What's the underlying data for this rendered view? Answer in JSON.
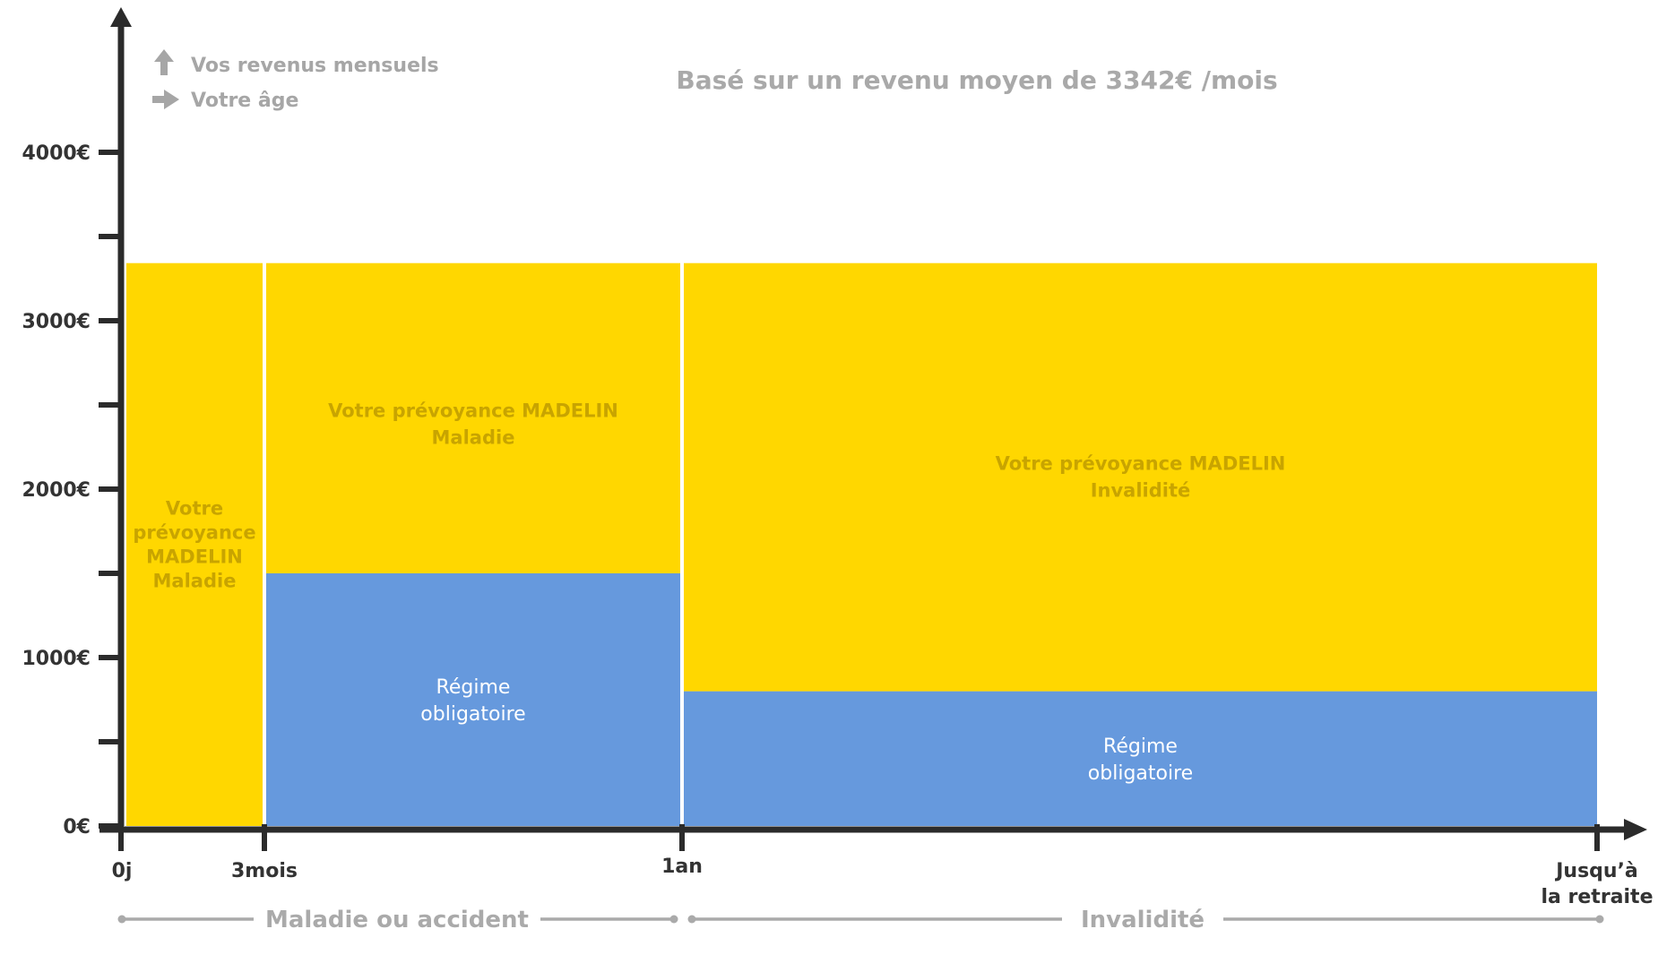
{
  "subtitle": "Basé sur un revenu moyen de 3342€ /mois",
  "legend": {
    "income_label": "Vos revenus mensuels",
    "age_label": "Votre âge"
  },
  "phases": {
    "sickness": "Maladie ou accident",
    "disability": "Invalidité"
  },
  "colors": {
    "yellow": "#FFD700",
    "blue": "#6699DD",
    "axis": "#2b2b2b",
    "muted": "#AAAAAA",
    "yellow_text": "#C8A400"
  },
  "chart_data": {
    "type": "bar",
    "title": "",
    "subtitle": "Basé sur un revenu moyen de 3342€ /mois",
    "xlabel": "",
    "ylabel": "",
    "ylim": [
      0,
      4000
    ],
    "y_ticks": [
      {
        "value": 0,
        "label": "0€"
      },
      {
        "value": 1000,
        "label": "1000€"
      },
      {
        "value": 2000,
        "label": "2000€"
      },
      {
        "value": 3000,
        "label": "3000€"
      },
      {
        "value": 4000,
        "label": "4000€"
      }
    ],
    "x_ticks": [
      {
        "label": "0j"
      },
      {
        "label": "3mois"
      },
      {
        "label": "1an"
      },
      {
        "label_line1": "Jusqu’à",
        "label_line2": "la retraite"
      }
    ],
    "income_level": 3342,
    "segments": [
      {
        "period": "0j – 3mois",
        "regime_obligatoire": 0,
        "prevoyance": 3342,
        "prevoyance_label_lines": [
          "Votre",
          "prévoyance",
          "MADELIN",
          "Maladie"
        ]
      },
      {
        "period": "3mois – 1an",
        "regime_obligatoire": 1500,
        "prevoyance": 1842,
        "prevoyance_label_lines": [
          "Votre prévoyance MADELIN",
          "Maladie"
        ],
        "regime_label_lines": [
          "Régime",
          "obligatoire"
        ]
      },
      {
        "period": "1an – Jusqu’à la retraite",
        "regime_obligatoire": 800,
        "prevoyance": 2542,
        "prevoyance_label_lines": [
          "Votre prévoyance MADELIN",
          "Invalidité"
        ],
        "regime_label_lines": [
          "Régime",
          "obligatoire"
        ]
      }
    ],
    "grid": false,
    "legend_position": "top-left"
  }
}
